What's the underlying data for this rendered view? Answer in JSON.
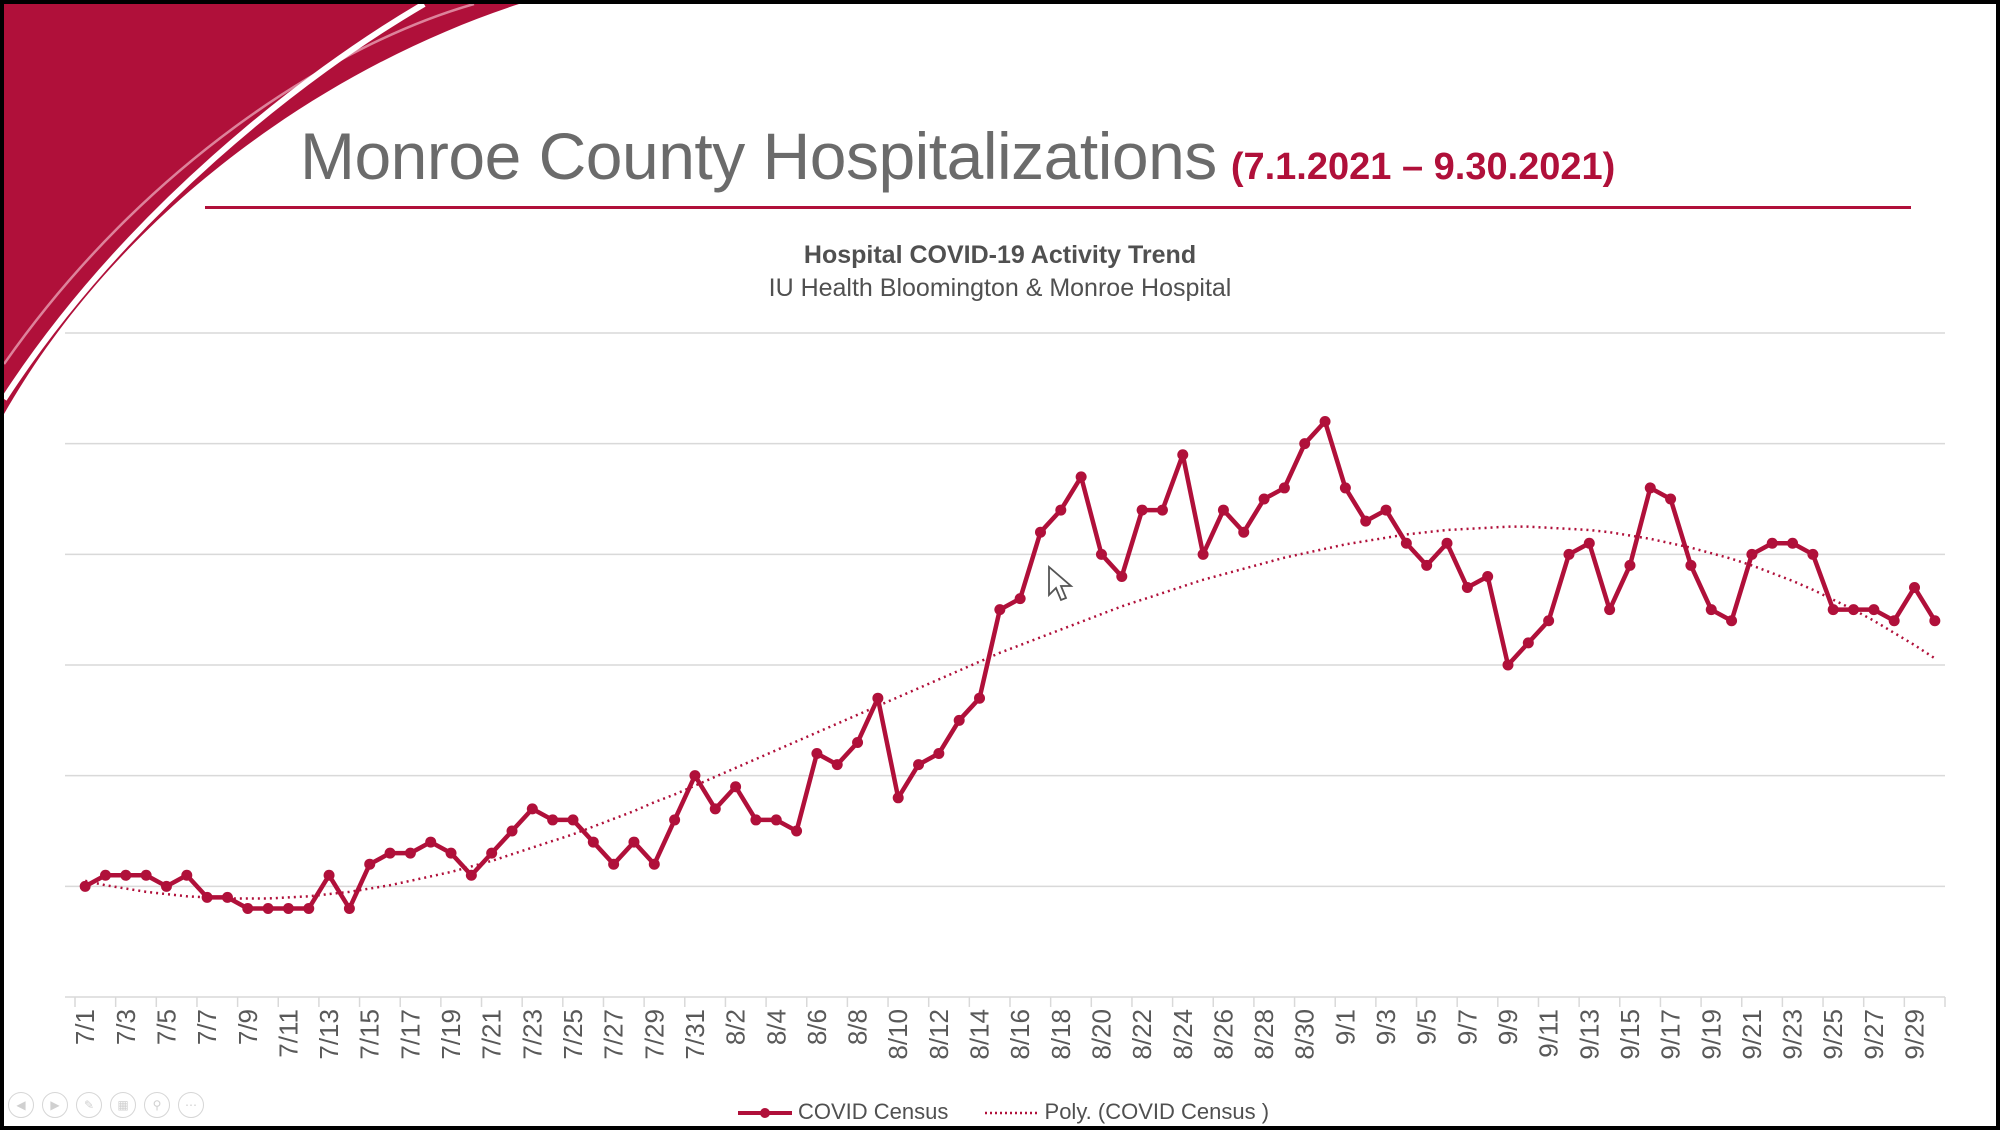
{
  "slide": {
    "title": "Monroe County Hospitalizations",
    "date_range": "(7.1.2021 – 9.30.2021)",
    "accent_color": "#b0103a"
  },
  "chart_data": {
    "type": "line",
    "title": "Hospital COVID-19 Activity Trend",
    "subtitle": "IU Health Bloomington & Monroe Hospital",
    "xlabel": "",
    "ylabel": "",
    "ylim": [
      0,
      60
    ],
    "grid": true,
    "legend_position": "bottom",
    "categories": [
      "7/1",
      "7/2",
      "7/3",
      "7/4",
      "7/5",
      "7/6",
      "7/7",
      "7/8",
      "7/9",
      "7/10",
      "7/11",
      "7/12",
      "7/13",
      "7/14",
      "7/15",
      "7/16",
      "7/17",
      "7/18",
      "7/19",
      "7/20",
      "7/21",
      "7/22",
      "7/23",
      "7/24",
      "7/25",
      "7/26",
      "7/27",
      "7/28",
      "7/29",
      "7/30",
      "7/31",
      "8/1",
      "8/2",
      "8/3",
      "8/4",
      "8/5",
      "8/6",
      "8/7",
      "8/8",
      "8/9",
      "8/10",
      "8/11",
      "8/12",
      "8/13",
      "8/14",
      "8/15",
      "8/16",
      "8/17",
      "8/18",
      "8/19",
      "8/20",
      "8/21",
      "8/22",
      "8/23",
      "8/24",
      "8/25",
      "8/26",
      "8/27",
      "8/28",
      "8/29",
      "8/30",
      "8/31",
      "9/1",
      "9/2",
      "9/3",
      "9/4",
      "9/5",
      "9/6",
      "9/7",
      "9/8",
      "9/9",
      "9/10",
      "9/11",
      "9/12",
      "9/13",
      "9/14",
      "9/15",
      "9/16",
      "9/17",
      "9/18",
      "9/19",
      "9/20",
      "9/21",
      "9/22",
      "9/23",
      "9/24",
      "9/25",
      "9/26",
      "9/27",
      "9/28",
      "9/29",
      "9/30"
    ],
    "tick_labels": [
      "7/1",
      "7/3",
      "7/5",
      "7/7",
      "7/9",
      "7/11",
      "7/13",
      "7/15",
      "7/17",
      "7/19",
      "7/21",
      "7/23",
      "7/25",
      "7/27",
      "7/29",
      "7/31",
      "8/2",
      "8/4",
      "8/6",
      "8/8",
      "8/10",
      "8/12",
      "8/14",
      "8/16",
      "8/18",
      "8/20",
      "8/22",
      "8/24",
      "8/26",
      "8/28",
      "8/30",
      "9/1",
      "9/3",
      "9/5",
      "9/7",
      "9/9",
      "9/11",
      "9/13",
      "9/15",
      "9/17",
      "9/19",
      "9/21",
      "9/23",
      "9/25",
      "9/27",
      "9/29"
    ],
    "series": [
      {
        "name": "COVID Census",
        "style": "solid-markers",
        "color": "#b0103a",
        "values": [
          10,
          11,
          11,
          11,
          10,
          11,
          9,
          9,
          8,
          8,
          8,
          8,
          11,
          8,
          12,
          13,
          13,
          14,
          13,
          11,
          13,
          15,
          17,
          16,
          16,
          14,
          12,
          14,
          12,
          16,
          20,
          17,
          19,
          16,
          16,
          15,
          22,
          21,
          23,
          27,
          18,
          21,
          22,
          25,
          27,
          35,
          36,
          42,
          44,
          47,
          40,
          38,
          44,
          44,
          49,
          40,
          44,
          42,
          45,
          46,
          50,
          52,
          46,
          43,
          44,
          41,
          39,
          41,
          37,
          38,
          30,
          32,
          34,
          40,
          41,
          35,
          39,
          46,
          45,
          39,
          35,
          34,
          40,
          41,
          41,
          40,
          35,
          35,
          35,
          34,
          37,
          34
        ]
      },
      {
        "name": "Poly. (COVID Census )",
        "style": "dotted",
        "color": "#b0103a",
        "values": [
          10.5,
          10.1,
          9.8,
          9.5,
          9.3,
          9.1,
          9.0,
          8.9,
          8.9,
          8.9,
          9.0,
          9.1,
          9.3,
          9.5,
          9.8,
          10.1,
          10.5,
          10.9,
          11.3,
          11.8,
          12.3,
          12.9,
          13.5,
          14.1,
          14.7,
          15.4,
          16.1,
          16.8,
          17.6,
          18.3,
          19.1,
          19.9,
          20.7,
          21.5,
          22.3,
          23.1,
          23.9,
          24.7,
          25.5,
          26.3,
          27.1,
          27.9,
          28.7,
          29.5,
          30.3,
          31.1,
          31.8,
          32.5,
          33.2,
          33.9,
          34.6,
          35.3,
          35.9,
          36.5,
          37.1,
          37.7,
          38.2,
          38.7,
          39.2,
          39.7,
          40.1,
          40.5,
          40.9,
          41.2,
          41.5,
          41.8,
          42.0,
          42.2,
          42.3,
          42.4,
          42.5,
          42.5,
          42.4,
          42.3,
          42.2,
          42.0,
          41.7,
          41.4,
          41.0,
          40.6,
          40.1,
          39.6,
          39.0,
          38.3,
          37.6,
          36.8,
          35.9,
          35.0,
          34.0,
          32.9,
          31.8,
          30.6
        ]
      }
    ]
  }
}
